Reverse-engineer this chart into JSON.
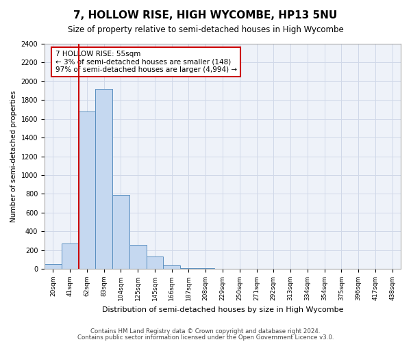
{
  "title": "7, HOLLOW RISE, HIGH WYCOMBE, HP13 5NU",
  "subtitle": "Size of property relative to semi-detached houses in High Wycombe",
  "xlabel": "Distribution of semi-detached houses by size in High Wycombe",
  "ylabel": "Number of semi-detached properties",
  "footer_line1": "Contains HM Land Registry data © Crown copyright and database right 2024.",
  "footer_line2": "Contains public sector information licensed under the Open Government Licence v3.0.",
  "bin_labels": [
    "20sqm",
    "41sqm",
    "62sqm",
    "83sqm",
    "104sqm",
    "125sqm",
    "145sqm",
    "166sqm",
    "187sqm",
    "208sqm",
    "229sqm",
    "250sqm",
    "271sqm",
    "292sqm",
    "313sqm",
    "334sqm",
    "354sqm",
    "375sqm",
    "396sqm",
    "417sqm",
    "438sqm"
  ],
  "bar_values": [
    55,
    270,
    1680,
    1920,
    790,
    255,
    130,
    35,
    10,
    5,
    3,
    2,
    1,
    1,
    0,
    0,
    0,
    0,
    0,
    0,
    0
  ],
  "bar_color": "#c5d8f0",
  "bar_edge_color": "#5a8fc0",
  "vline_color": "#cc0000",
  "vline_x": 1.5,
  "ylim": [
    0,
    2400
  ],
  "yticks": [
    0,
    200,
    400,
    600,
    800,
    1000,
    1200,
    1400,
    1600,
    1800,
    2000,
    2200,
    2400
  ],
  "annotation_title": "7 HOLLOW RISE: 55sqm",
  "annotation_line1": "← 3% of semi-detached houses are smaller (148)",
  "annotation_line2": "97% of semi-detached houses are larger (4,994) →",
  "annotation_box_color": "#cc0000",
  "grid_color": "#d0d8e8",
  "bg_color": "#eef2f9"
}
